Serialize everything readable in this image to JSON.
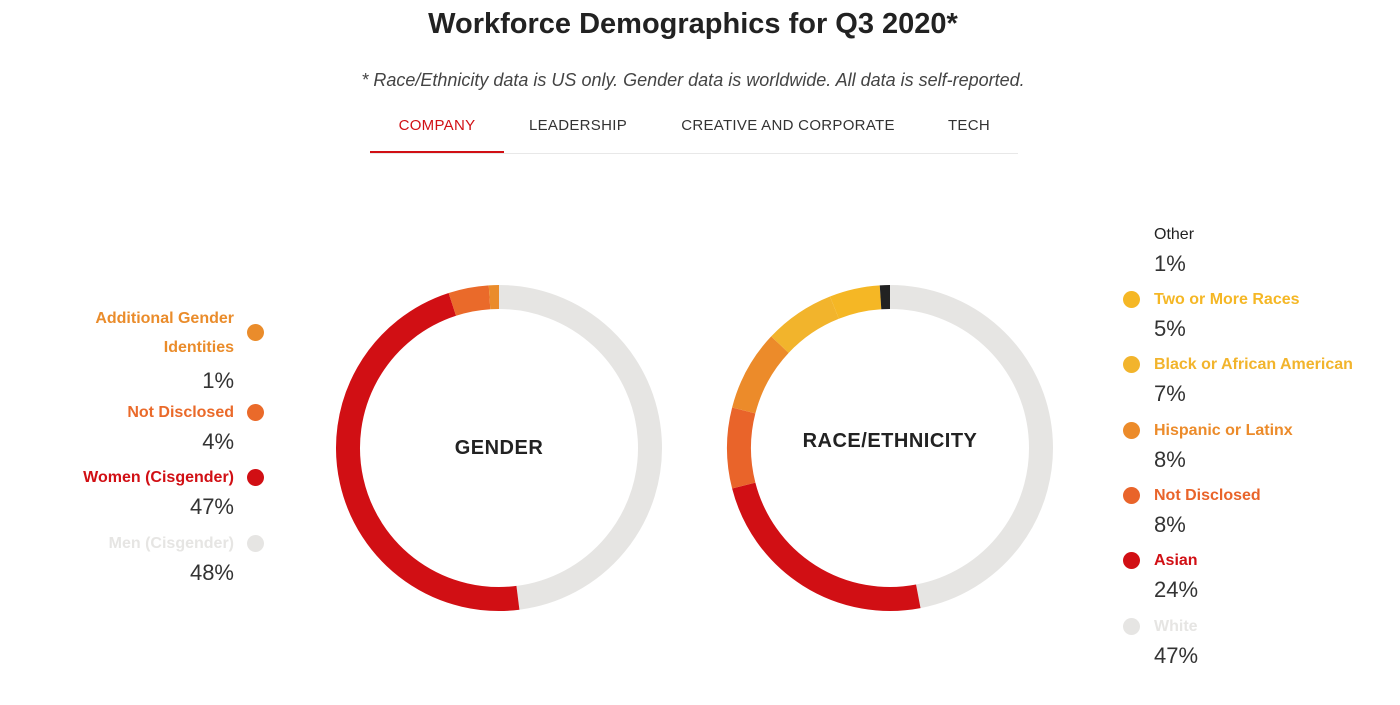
{
  "title": "Workforce Demographics for Q3 2020*",
  "subtitle": "* Race/Ethnicity data is US only. Gender data is worldwide. All data is self-reported.",
  "tabs": [
    {
      "label": "COMPANY",
      "active": true
    },
    {
      "label": "LEADERSHIP",
      "active": false
    },
    {
      "label": "CREATIVE AND CORPORATE",
      "active": false
    },
    {
      "label": "TECH",
      "active": false
    }
  ],
  "colors": {
    "accent": "#d10f14",
    "track": "#e6e5e3"
  },
  "chart_data": [
    {
      "type": "pie",
      "title": "GENDER",
      "series": [
        {
          "name": "Additional Gender Identities",
          "value": 1,
          "value_label": "1%",
          "color": "#ea8c2b"
        },
        {
          "name": "Not Disclosed",
          "value": 4,
          "value_label": "4%",
          "color": "#ea6a2a"
        },
        {
          "name": "Women (Cisgender)",
          "value": 47,
          "value_label": "47%",
          "color": "#d10f14"
        },
        {
          "name": "Men (Cisgender)",
          "value": 48,
          "value_label": "48%",
          "color": "#e6e5e3"
        }
      ]
    },
    {
      "type": "pie",
      "title": "RACE/ETHNICITY",
      "series": [
        {
          "name": "Other",
          "value": 1,
          "value_label": "1%",
          "color": "#222222"
        },
        {
          "name": "Two or More Races",
          "value": 5,
          "value_label": "5%",
          "color": "#f5b725"
        },
        {
          "name": "Black or African American",
          "value": 7,
          "value_label": "7%",
          "color": "#f2b42c"
        },
        {
          "name": "Hispanic or Latinx",
          "value": 8,
          "value_label": "8%",
          "color": "#ec8b2a"
        },
        {
          "name": "Not Disclosed",
          "value": 8,
          "value_label": "8%",
          "color": "#e9642a"
        },
        {
          "name": "Asian",
          "value": 24,
          "value_label": "24%",
          "color": "#d10f14"
        },
        {
          "name": "White",
          "value": 47,
          "value_label": "47%",
          "color": "#e6e5e3"
        }
      ]
    }
  ]
}
